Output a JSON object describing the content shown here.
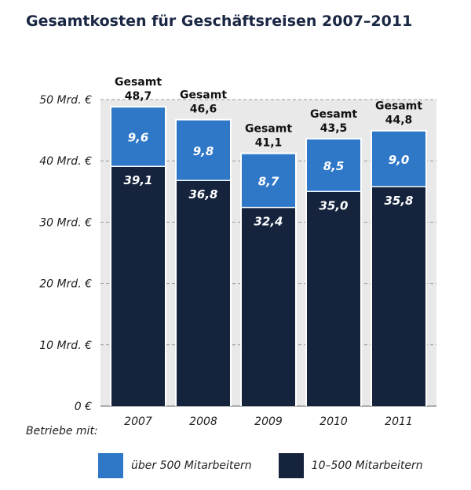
{
  "chart_data": {
    "type": "bar",
    "stacked": true,
    "title": "Gesamtkosten für Geschäftsreisen 2007–2011",
    "categories": [
      "2007",
      "2008",
      "2009",
      "2010",
      "2011"
    ],
    "series": [
      {
        "name": "10–500 Mitarbeitern",
        "color": "#15233d",
        "values": [
          39.1,
          36.8,
          32.4,
          35.0,
          35.8
        ],
        "labels": [
          "39,1",
          "36,8",
          "32,4",
          "35,0",
          "35,8"
        ]
      },
      {
        "name": "über 500 Mitarbeitern",
        "color": "#2f78c8",
        "values": [
          9.6,
          9.8,
          8.7,
          8.5,
          9.0
        ],
        "labels": [
          "9,6",
          "9,8",
          "8,7",
          "8,5",
          "9,0"
        ]
      }
    ],
    "totals": [
      48.7,
      46.6,
      41.1,
      43.5,
      44.8
    ],
    "total_labels": [
      "48,7",
      "46,6",
      "41,1",
      "43,5",
      "44,8"
    ],
    "total_prefix": "Gesamt",
    "ylim": [
      0,
      50
    ],
    "yticks": [
      0,
      10,
      20,
      30,
      40,
      50
    ],
    "ytick_labels": [
      "0 €",
      "10 Mrd. €",
      "20 Mrd. €",
      "30 Mrd. €",
      "40 Mrd. €",
      "50 Mrd. €"
    ],
    "grid": "dashed horizontal",
    "xlabel": "",
    "ylabel": "",
    "legend_title": "Betriebe mit:",
    "legend": [
      {
        "label": "über 500 Mitarbeitern",
        "color": "#2f78c8"
      },
      {
        "label": "10–500 Mitarbeitern",
        "color": "#15233d"
      }
    ],
    "legend_position": "bottom"
  }
}
